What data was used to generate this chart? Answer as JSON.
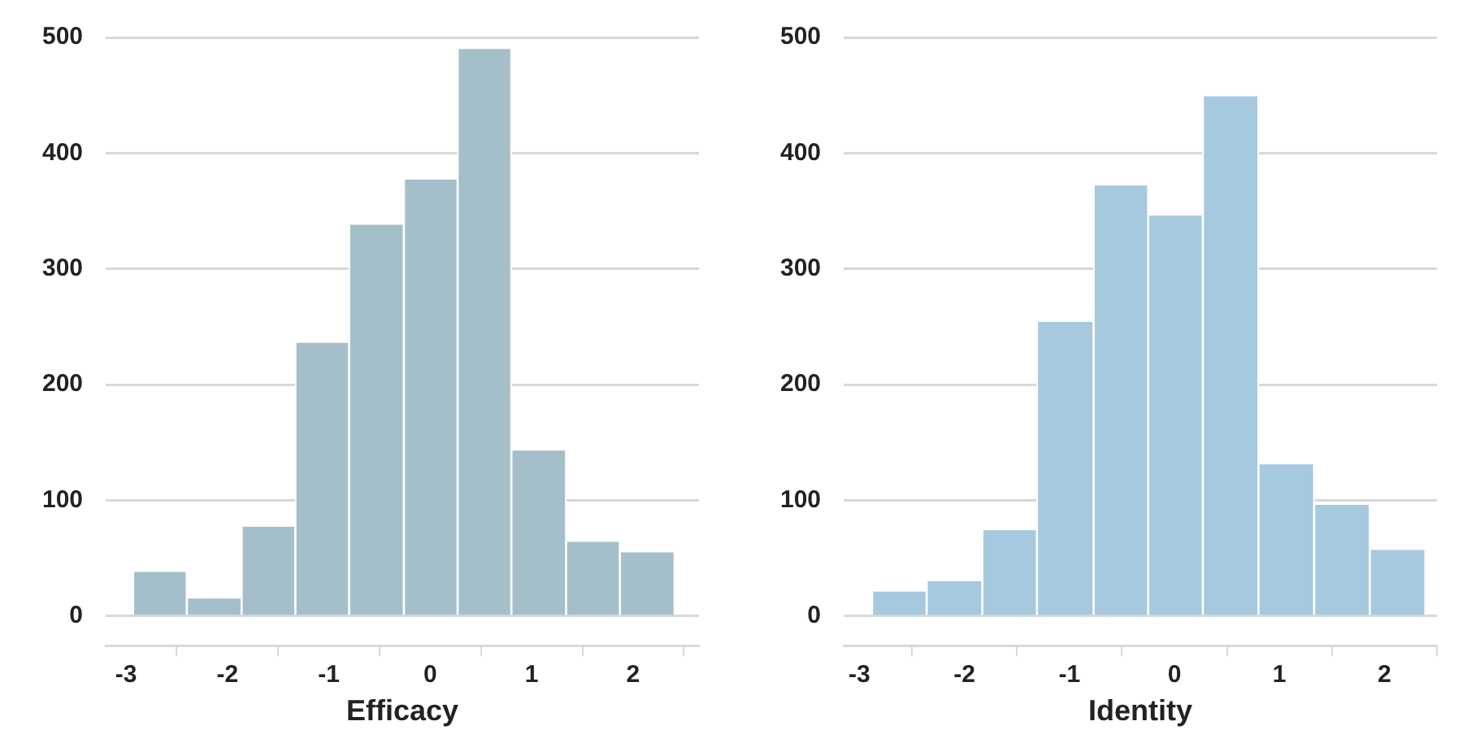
{
  "chart_data": [
    {
      "type": "histogram",
      "xlabel": "Efficacy",
      "bins": [
        -2.93,
        -2.4,
        -1.86,
        -1.33,
        -0.8,
        -0.26,
        0.27,
        0.8,
        1.34,
        1.87,
        2.41
      ],
      "values": [
        39,
        16,
        78,
        237,
        339,
        378,
        491,
        144,
        65,
        56
      ],
      "color": "#a5bfca",
      "xlim": [
        -3.2,
        2.65
      ],
      "ylim": [
        -26,
        500
      ],
      "xticks": [
        -3,
        -2,
        -1,
        0,
        1,
        2
      ],
      "yticks": [
        0,
        100,
        200,
        300,
        400,
        500
      ],
      "grid": "y"
    },
    {
      "type": "histogram",
      "xlabel": "Identity",
      "bins": [
        -2.88,
        -2.36,
        -1.83,
        -1.31,
        -0.77,
        -0.25,
        0.27,
        0.8,
        1.33,
        1.86,
        2.39
      ],
      "values": [
        22,
        31,
        75,
        255,
        373,
        347,
        450,
        132,
        97,
        58
      ],
      "color": "#a6c9e0",
      "xlim": [
        -3.15,
        2.5
      ],
      "ylim": [
        -26,
        500
      ],
      "xticks": [
        -3,
        -2,
        -1,
        0,
        1,
        2
      ],
      "yticks": [
        0,
        100,
        200,
        300,
        400,
        500
      ],
      "grid": "y"
    }
  ]
}
